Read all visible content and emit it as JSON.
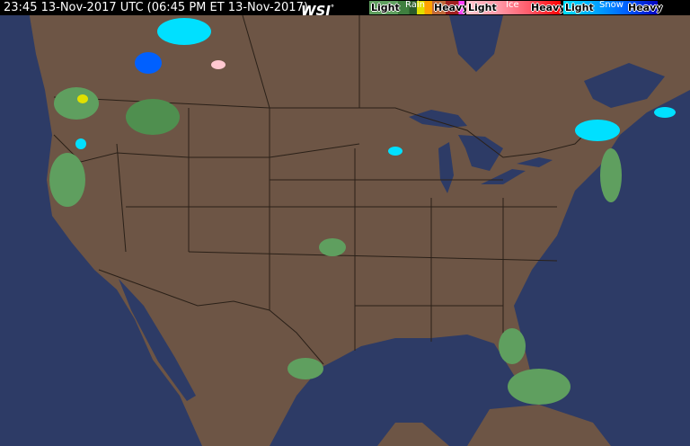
{
  "header": {
    "timestamp": "23:45 13-Nov-2017 UTC  (06:45 PM ET 13-Nov-2017)",
    "logo": "WSI",
    "logo_mark": "°"
  },
  "legend": {
    "rain": {
      "title": "Rain",
      "light": "Light",
      "heavy": "Heavy",
      "colors": [
        "#5f9f5f",
        "#3f7f3f",
        "#2a5a2a",
        "#e0e000",
        "#ffa000",
        "#c06a3a",
        "#a02020",
        "#ff40ff"
      ]
    },
    "ice": {
      "title": "Ice",
      "light": "Light",
      "heavy": "Heavy",
      "colors": [
        "#ffc8d0",
        "#ff9aa8",
        "#ff5a6a",
        "#ff0000"
      ]
    },
    "snow": {
      "title": "Snow",
      "light": "Light",
      "heavy": "Heavy",
      "colors": [
        "#00e0ff",
        "#00a8ff",
        "#0060ff",
        "#0000c0"
      ]
    }
  },
  "map": {
    "land_color": "#6d5545",
    "water_color": "#2d3b66",
    "border_color": "#2a2018"
  }
}
